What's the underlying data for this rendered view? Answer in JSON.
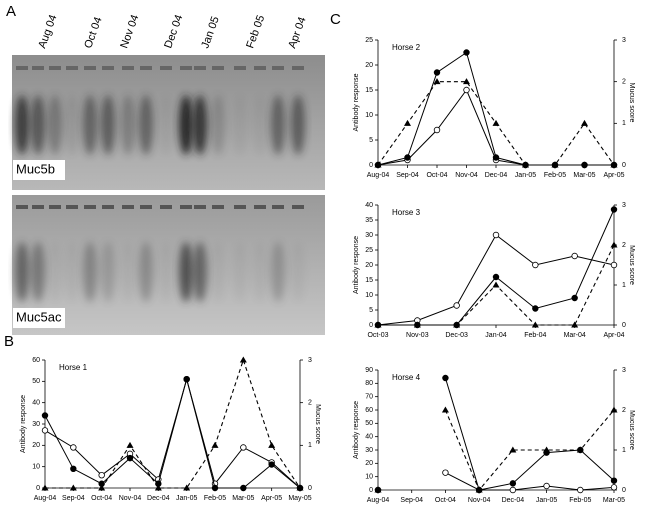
{
  "figure": {
    "panels": [
      "A",
      "B",
      "C"
    ],
    "gel": {
      "lanes": [
        "Aug 04",
        "Oct 04",
        "Nov 04",
        "Dec 04",
        "Jan 05",
        "Feb 05",
        "Apr 04"
      ],
      "blots": [
        "Muc5b",
        "Muc5ac"
      ]
    }
  },
  "chart_data": [
    {
      "type": "line",
      "title": "Horse 1",
      "ylabel": "Antibody response",
      "y2label": "Mucus score",
      "categories": [
        "Aug-04",
        "Sep-04",
        "Oct-04",
        "Nov-04",
        "Dec-04",
        "Jan-05",
        "Feb-05",
        "Mar-05",
        "Apr-05",
        "May-05"
      ],
      "ylim": [
        0,
        60
      ],
      "yticks": [
        0,
        10,
        20,
        30,
        40,
        50,
        60
      ],
      "y2lim": [
        0,
        3
      ],
      "y2ticks": [
        0,
        1,
        2,
        3
      ],
      "series": [
        {
          "color": "#000000",
          "marker": "open-circle",
          "line": "solid",
          "values": [
            27,
            19,
            6,
            16,
            4,
            51,
            2,
            19,
            12,
            0
          ]
        },
        {
          "color": "#000000",
          "marker": "filled-circle",
          "line": "solid",
          "values": [
            34,
            9,
            2,
            14,
            2,
            51,
            0,
            0,
            11,
            0
          ]
        },
        {
          "color": "#000000",
          "marker": "triangle",
          "line": "dashed",
          "axis": "y2",
          "values": [
            0,
            0,
            0,
            1,
            0,
            0,
            1,
            3,
            1,
            0
          ]
        }
      ]
    },
    {
      "type": "line",
      "title": "Horse 2",
      "ylabel": "Antibody response",
      "y2label": "Mucus score",
      "categories": [
        "Aug-04",
        "Sep-04",
        "Oct-04",
        "Nov-04",
        "Dec-04",
        "Jan-05",
        "Feb-05",
        "Mar-05",
        "Apr-05"
      ],
      "ylim": [
        0,
        25
      ],
      "yticks": [
        0,
        5,
        10,
        15,
        20,
        25
      ],
      "y2lim": [
        0,
        3
      ],
      "y2ticks": [
        0,
        1,
        2,
        3
      ],
      "series": [
        {
          "color": "#000000",
          "marker": "open-circle",
          "line": "solid",
          "values": [
            0,
            1,
            7,
            15,
            1,
            0,
            0,
            0,
            0
          ]
        },
        {
          "color": "#000000",
          "marker": "filled-circle",
          "line": "solid",
          "values": [
            0,
            1.5,
            18.5,
            22.5,
            1.5,
            0,
            0,
            0,
            0
          ]
        },
        {
          "color": "#000000",
          "marker": "triangle",
          "line": "dashed",
          "axis": "y2",
          "values": [
            0,
            1,
            2,
            2,
            1,
            0,
            0,
            1,
            0
          ]
        }
      ]
    },
    {
      "type": "line",
      "title": "Horse 3",
      "ylabel": "Antibody response",
      "y2label": "Mucus score",
      "categories": [
        "Oct-03",
        "Nov-03",
        "Dec-03",
        "Jan-04",
        "Feb-04",
        "Mar-04",
        "Apr-04"
      ],
      "ylim": [
        0,
        40
      ],
      "yticks": [
        0,
        5,
        10,
        15,
        20,
        25,
        30,
        35,
        40
      ],
      "y2lim": [
        0,
        3
      ],
      "y2ticks": [
        0,
        1,
        2,
        3
      ],
      "series": [
        {
          "color": "#000000",
          "marker": "open-circle",
          "line": "solid",
          "values": [
            0,
            1.5,
            6.5,
            30,
            20,
            23,
            20
          ]
        },
        {
          "color": "#000000",
          "marker": "filled-circle",
          "line": "solid",
          "values": [
            0,
            0,
            0,
            16,
            5.5,
            9,
            38.5
          ]
        },
        {
          "color": "#000000",
          "marker": "triangle",
          "line": "dashed",
          "axis": "y2",
          "values": [
            0,
            0,
            0,
            1,
            0,
            0,
            2
          ]
        }
      ]
    },
    {
      "type": "line",
      "title": "Horse 4",
      "ylabel": "Antibody response",
      "y2label": "Mucus score",
      "categories": [
        "Aug-04",
        "Sep-04",
        "Oct-04",
        "Nov-04",
        "Dec-04",
        "Jan-05",
        "Feb-05",
        "Mar-05"
      ],
      "ylim": [
        0,
        90
      ],
      "yticks": [
        0,
        10,
        20,
        30,
        40,
        50,
        60,
        70,
        80,
        90
      ],
      "y2lim": [
        0,
        3
      ],
      "y2ticks": [
        0,
        1,
        2,
        3
      ],
      "series": [
        {
          "color": "#000000",
          "marker": "open-circle",
          "line": "solid",
          "values": [
            0,
            null,
            13,
            0,
            0,
            3,
            0,
            2
          ]
        },
        {
          "color": "#000000",
          "marker": "filled-circle",
          "line": "solid",
          "values": [
            0,
            null,
            84,
            0,
            5,
            28,
            30,
            7
          ]
        },
        {
          "color": "#000000",
          "marker": "triangle",
          "line": "dashed",
          "axis": "y2",
          "values": [
            0,
            null,
            2,
            0,
            1,
            1,
            1,
            2
          ]
        }
      ]
    }
  ]
}
